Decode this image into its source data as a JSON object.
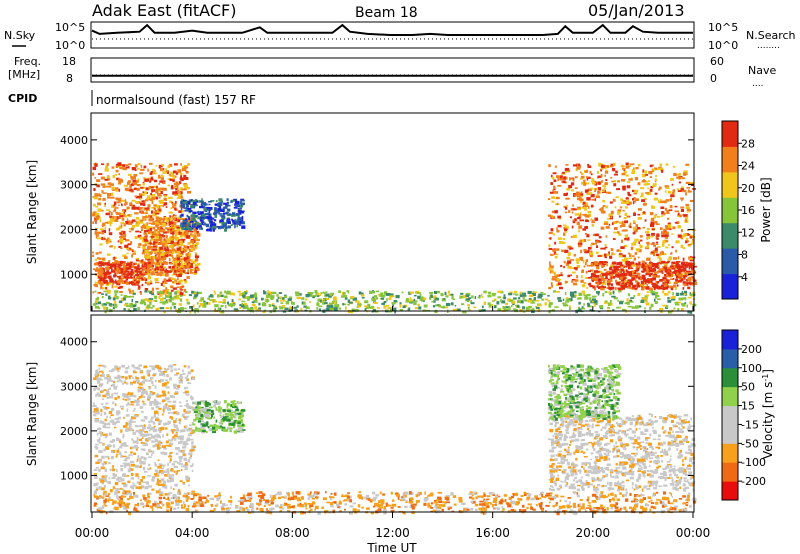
{
  "header": {
    "station": "Adak East (fitACF)",
    "beam": "Beam 18",
    "date": "05/Jan/2013"
  },
  "panel_labels": {
    "nsky": "N.Sky",
    "freq_line1": "Freq.",
    "freq_line2": "[MHz]",
    "cpid": "CPID",
    "nsearch": "N.Search",
    "nave": "Nave",
    "nsearch_dots": "........",
    "nave_dots": "....",
    "cpid_text": "normalsound (fast) 157 RF"
  },
  "chart_data": [
    {
      "type": "line",
      "name": "noise",
      "left_ticks": [
        "10^5",
        "10^0"
      ],
      "right_ticks": [
        "10^5",
        "10^0"
      ],
      "x_hours": [
        0,
        0.3,
        1.0,
        1.9,
        2.2,
        2.5,
        3.3,
        4.0,
        4.6,
        5.3,
        6.0,
        6.7,
        7.0,
        7.3,
        8.0,
        8.7,
        9.6,
        10.0,
        10.3,
        11.0,
        11.9,
        12.8,
        13.5,
        14.2,
        15.0,
        15.8,
        16.6,
        17.2,
        18.0,
        18.6,
        18.9,
        19.2,
        20.0,
        20.4,
        20.7,
        21.3,
        21.6,
        22.0,
        22.6,
        23.2,
        24.0
      ],
      "y_fraction": [
        0.7,
        0.55,
        0.6,
        0.65,
        0.95,
        0.6,
        0.6,
        0.7,
        0.6,
        0.6,
        0.6,
        0.85,
        0.6,
        0.6,
        0.6,
        0.6,
        0.6,
        0.95,
        0.65,
        0.55,
        0.5,
        0.5,
        0.55,
        0.5,
        0.5,
        0.5,
        0.5,
        0.5,
        0.5,
        0.55,
        0.9,
        0.6,
        0.6,
        0.95,
        0.6,
        0.6,
        0.9,
        0.65,
        0.6,
        0.6,
        0.6
      ]
    },
    {
      "type": "line",
      "name": "frequency",
      "left_ticks": [
        "18",
        "8"
      ],
      "right_ticks": [
        "60",
        "0"
      ],
      "value_mhz": 10.6
    },
    {
      "type": "heatmap",
      "name": "power",
      "ylabel": "Slant Range [km]",
      "yticks": [
        1000,
        2000,
        3000,
        4000
      ],
      "ylim": [
        180,
        4600
      ],
      "colorbar_label": "Power [dB]",
      "colorbar_ticks": [
        "4",
        "8",
        "12",
        "16",
        "20",
        "24",
        "28"
      ],
      "colors": [
        "#1a22d8",
        "#2a5aa8",
        "#3d8a6a",
        "#86c43a",
        "#f0c51c",
        "#f07f1c",
        "#e02a12"
      ],
      "regions": [
        {
          "hours": [
            0.0,
            3.8
          ],
          "range_km": [
            600,
            3500
          ],
          "level": 5
        },
        {
          "hours": [
            0.2,
            2.2
          ],
          "range_km": [
            800,
            1300
          ],
          "level": 6
        },
        {
          "hours": [
            2.0,
            4.2
          ],
          "range_km": [
            1000,
            2300
          ],
          "level": 5
        },
        {
          "hours": [
            3.5,
            6.0
          ],
          "range_km": [
            2000,
            2700
          ],
          "level": 1
        },
        {
          "hours": [
            18.2,
            24.0
          ],
          "range_km": [
            700,
            3500
          ],
          "level": 5
        },
        {
          "hours": [
            19.8,
            24.0
          ],
          "range_km": [
            700,
            1300
          ],
          "level": 6
        },
        {
          "hours": [
            0.0,
            24.0
          ],
          "range_km": [
            180,
            650
          ],
          "level": 3
        }
      ]
    },
    {
      "type": "heatmap",
      "name": "velocity",
      "ylabel": "Slant Range [km]",
      "yticks": [
        1000,
        2000,
        3000,
        4000
      ],
      "ylim": [
        180,
        4600
      ],
      "colorbar_label": "Velocity [m s^-1]",
      "colorbar_ticks": [
        "-200",
        "-100",
        "-50",
        "-15",
        "15",
        "50",
        "100",
        "200"
      ],
      "colors": [
        "#e80c0c",
        "#ef6a14",
        "#f6a01c",
        "#c8c8c8",
        "#c8c8c8",
        "#8fd14a",
        "#2b8f3a",
        "#2a5fa8",
        "#1a22d8"
      ],
      "regions": [
        {
          "hours": [
            0.0,
            4.0
          ],
          "range_km": [
            600,
            3500
          ],
          "level": 3
        },
        {
          "hours": [
            4.0,
            6.0
          ],
          "range_km": [
            2000,
            2700
          ],
          "level": 5
        },
        {
          "hours": [
            18.2,
            24.0
          ],
          "range_km": [
            700,
            2400
          ],
          "level": 3
        },
        {
          "hours": [
            18.2,
            21.0
          ],
          "range_km": [
            2300,
            3500
          ],
          "level": 5
        },
        {
          "hours": [
            0.0,
            24.0
          ],
          "range_km": [
            180,
            650
          ],
          "level": 2
        }
      ]
    }
  ],
  "xaxis": {
    "ticks": [
      "00:00",
      "04:00",
      "08:00",
      "12:00",
      "16:00",
      "20:00",
      "00:00"
    ],
    "label": "Time UT"
  }
}
